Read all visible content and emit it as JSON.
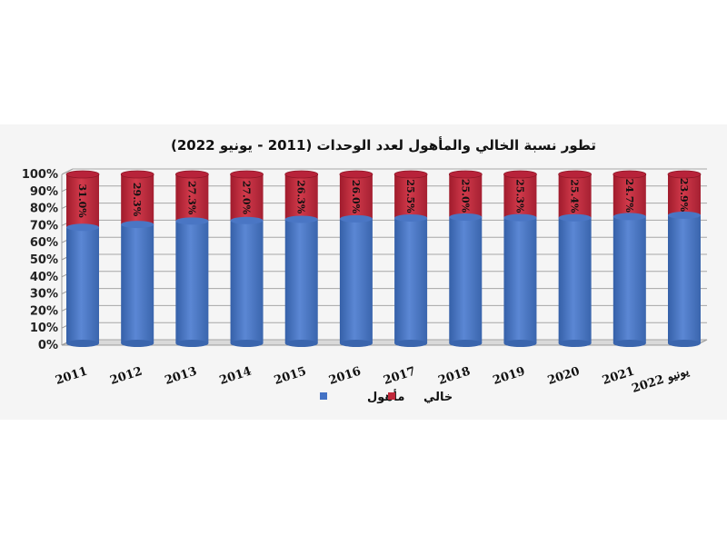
{
  "chart_data": {
    "type": "bar",
    "stacked": true,
    "title": "تطور نسبة الخالي والمأهول لعدد الوحدات (2011 - يونيو 2022)",
    "categories": [
      "2011",
      "2012",
      "2013",
      "2014",
      "2015",
      "2016",
      "2017",
      "2018",
      "2019",
      "2020",
      "2021",
      "يونيو 2022"
    ],
    "series": [
      {
        "name": "مأهول",
        "color": "#4472c4",
        "values": [
          69.0,
          70.7,
          72.7,
          73.0,
          73.7,
          74.0,
          74.5,
          75.0,
          74.7,
          74.6,
          75.3,
          76.1
        ]
      },
      {
        "name": "خالي",
        "color": "#c0283a",
        "values": [
          31.0,
          29.3,
          27.3,
          27.0,
          26.3,
          26.0,
          25.5,
          25.0,
          25.3,
          25.4,
          24.7,
          23.9
        ]
      }
    ],
    "data_labels": [
      "31.0%",
      "29.3%",
      "27.3%",
      "27.0%",
      "26.3%",
      "26.0%",
      "25.5%",
      "25.0%",
      "25.3%",
      "25.4%",
      "24.7%",
      "23.9%"
    ],
    "yticks": [
      "0%",
      "10%",
      "20%",
      "30%",
      "40%",
      "50%",
      "60%",
      "70%",
      "80%",
      "90%",
      "100%"
    ],
    "ylim": [
      0,
      100
    ],
    "grid": true,
    "legend": {
      "position": "bottom",
      "items": [
        "مأهول",
        "خالي"
      ]
    }
  }
}
